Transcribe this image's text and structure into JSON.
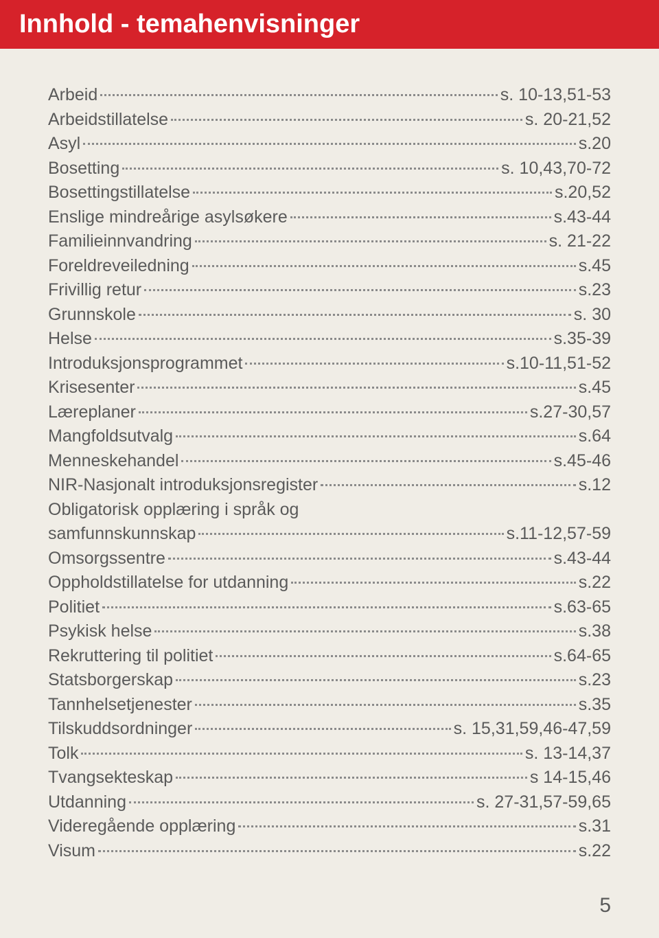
{
  "header": {
    "title": "Innhold - temahenvisninger"
  },
  "entries": [
    {
      "label": "Arbeid",
      "page": "s. 10-13,51-53"
    },
    {
      "label": "Arbeidstillatelse",
      "page": "s. 20-21,52"
    },
    {
      "label": "Asyl",
      "page": "s.20"
    },
    {
      "label": "Bosetting",
      "page": "s. 10,43,70-72"
    },
    {
      "label": "Bosettingstillatelse",
      "page": "s.20,52"
    },
    {
      "label": "Enslige mindreårige asylsøkere",
      "page": "s.43-44"
    },
    {
      "label": "Familieinnvandring",
      "page": "s. 21-22"
    },
    {
      "label": "Foreldreveiledning",
      "page": "s.45"
    },
    {
      "label": "Frivillig retur",
      "page": "s.23"
    },
    {
      "label": "Grunnskole",
      "page": "s. 30"
    },
    {
      "label": "Helse",
      "page": "s.35-39"
    },
    {
      "label": "Introduksjonsprogrammet",
      "page": "s.10-11,51-52"
    },
    {
      "label": "Krisesenter",
      "page": "s.45"
    },
    {
      "label": "Læreplaner",
      "page": "s.27-30,57"
    },
    {
      "label": "Mangfoldsutvalg",
      "page": "s.64"
    },
    {
      "label": "Menneskehandel",
      "page": "s.45-46"
    },
    {
      "label": "NIR-Nasjonalt introduksjonsregister",
      "page": "s.12"
    },
    {
      "multiline_label": "Obligatorisk opplæring i språk og",
      "label": "samfunnskunnskap",
      "page": "s.11-12,57-59"
    },
    {
      "label": "Omsorgssentre",
      "page": "s.43-44"
    },
    {
      "label": "Oppholdstillatelse for utdanning",
      "page": "s.22"
    },
    {
      "label": "Politiet",
      "page": "s.63-65"
    },
    {
      "label": "Psykisk helse",
      "page": "s.38"
    },
    {
      "label": "Rekruttering til politiet",
      "page": "s.64-65"
    },
    {
      "label": "Statsborgerskap",
      "page": "s.23"
    },
    {
      "label": "Tannhelsetjenester",
      "page": "s.35"
    },
    {
      "label": "Tilskuddsordninger",
      "page": "s. 15,31,59,46-47,59"
    },
    {
      "label": "Tolk",
      "page": "s. 13-14,37"
    },
    {
      "label": "Tvangsekteskap",
      "page": "s 14-15,46"
    },
    {
      "label": "Utdanning",
      "page": "s. 27-31,57-59,65"
    },
    {
      "label": "Videregående opplæring",
      "page": "s.31"
    },
    {
      "label": "Visum",
      "page": "s.22"
    }
  ],
  "page_number": "5",
  "colors": {
    "header_bg": "#d6222a",
    "header_text": "#ffffff",
    "body_bg": "#f0ede6",
    "text": "#5a5a5a",
    "dots": "#8a8a8a"
  }
}
